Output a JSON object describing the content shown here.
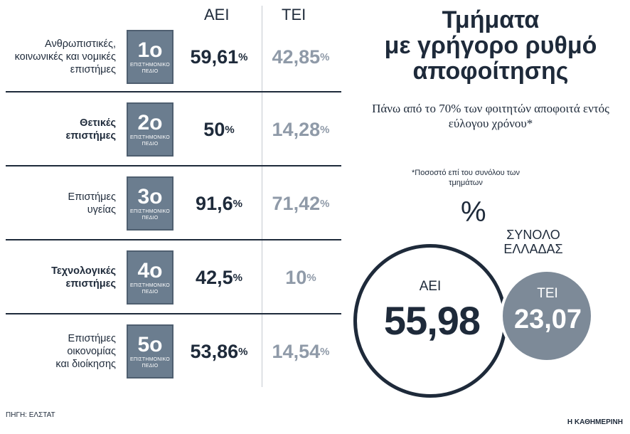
{
  "chart_data": {
    "type": "table",
    "title": "Τμήματα\nμε γρήγορο ρυθμό\nαποφοίτησης",
    "subtitle": "Πάνω από το 70% των φοιτητών αποφοιτά εντός εύλογου χρόνου*",
    "footnote": "*Ποσοστό επί του συνόλου των τμημάτων",
    "columns": [
      "ΑΕΙ",
      "ΤΕΙ"
    ],
    "unit": "%",
    "rows": [
      {
        "label": "Ανθρωπιστικές,\nκοινωνικές και νομικές\nεπιστήμες",
        "bold": false,
        "field_num": "1ο",
        "field_text": "ΕΠΙΣΤΗΜΟΝΙΚΟ\nΠΕΔΙΟ",
        "aei": "59,61",
        "tei": "42,85"
      },
      {
        "label": "Θετικές\nεπιστήμες",
        "bold": true,
        "field_num": "2ο",
        "field_text": "ΕΠΙΣΤΗΜΟΝΙΚΟ\nΠΕΔΙΟ",
        "aei": "50",
        "tei": "14,28"
      },
      {
        "label": "Επιστήμες\nυγείας",
        "bold": false,
        "field_num": "3ο",
        "field_text": "ΕΠΙΣΤΗΜΟΝΙΚΟ\nΠΕΔΙΟ",
        "aei": "91,6",
        "tei": "71,42"
      },
      {
        "label": "Τεχνολογικές\nεπιστήμες",
        "bold": true,
        "field_num": "4ο",
        "field_text": "ΕΠΙΣΤΗΜΟΝΙΚΟ\nΠΕΔΙΟ",
        "aei": "42,5",
        "tei": "10"
      },
      {
        "label": "Επιστήμες\nοικονομίας\nκαι διοίκησης",
        "bold": false,
        "field_num": "5ο",
        "field_text": "ΕΠΙΣΤΗΜΟΝΙΚΟ\nΠΕΔΙΟ",
        "aei": "53,86",
        "tei": "14,54"
      }
    ],
    "total": {
      "label": "ΣΥΝΟΛΟ\nΕΛΛΑΔΑΣ",
      "percent_sign": "%",
      "aei_label": "ΑΕΙ",
      "aei": "55,98",
      "tei_label": "ΤΕΙ",
      "tei": "23,07"
    }
  },
  "source": "ΠΗΓΗ: ΕΛΣΤΑΤ",
  "brand": "Η ΚΑΘΗΜΕΡΙΝΗ",
  "colors": {
    "navy": "#1e2a3a",
    "muted_value": "#8f9aa8",
    "badge": "#6b7d8f",
    "tei_circle": "#7d8a98"
  }
}
